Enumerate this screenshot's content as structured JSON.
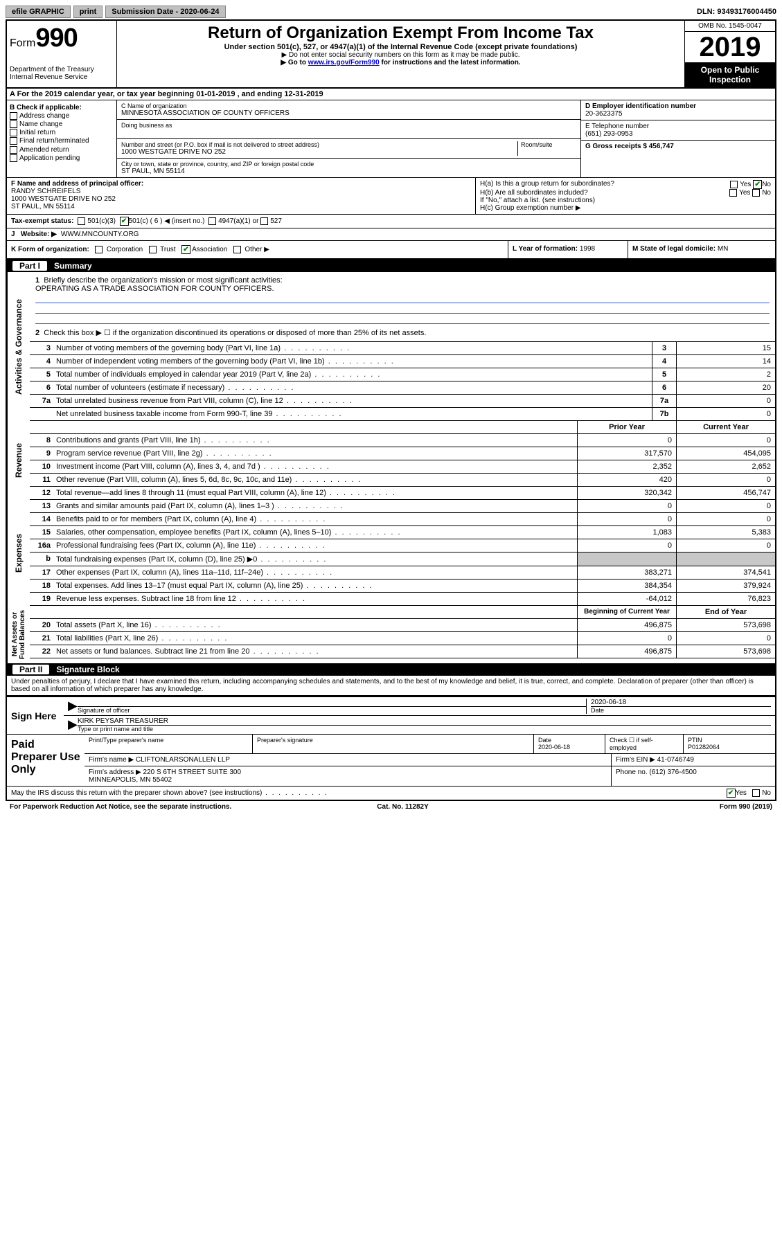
{
  "topbar": {
    "efile": "efile GRAPHIC",
    "print": "print",
    "subdate_label": "Submission Date - ",
    "subdate": "2020-06-24",
    "dln_label": "DLN: ",
    "dln": "93493176004450"
  },
  "header": {
    "form_prefix": "Form",
    "form_num": "990",
    "dept": "Department of the Treasury\nInternal Revenue Service",
    "title": "Return of Organization Exempt From Income Tax",
    "sub1": "Under section 501(c), 527, or 4947(a)(1) of the Internal Revenue Code (except private foundations)",
    "sub2": "▶ Do not enter social security numbers on this form as it may be made public.",
    "sub3_pre": "▶ Go to ",
    "sub3_link": "www.irs.gov/Form990",
    "sub3_post": " for instructions and the latest information.",
    "omb": "OMB No. 1545-0047",
    "year": "2019",
    "open": "Open to Public Inspection"
  },
  "rowA": "A For the 2019 calendar year, or tax year beginning 01-01-2019   , and ending 12-31-2019",
  "colB": {
    "title": "B Check if applicable:",
    "items": [
      "Address change",
      "Name change",
      "Initial return",
      "Final return/terminated",
      "Amended return",
      "Application pending"
    ]
  },
  "colC": {
    "name_label": "C Name of organization",
    "name": "MINNESOTA ASSOCIATION OF COUNTY OFFICERS",
    "dba_label": "Doing business as",
    "addr_label": "Number and street (or P.O. box if mail is not delivered to street address)",
    "room_label": "Room/suite",
    "addr": "1000 WESTGATE DRIVE NO 252",
    "city_label": "City or town, state or province, country, and ZIP or foreign postal code",
    "city": "ST PAUL, MN  55114"
  },
  "colD": {
    "ein_label": "D Employer identification number",
    "ein": "20-3623375",
    "phone_label": "E Telephone number",
    "phone": "(651) 293-0953",
    "gross_label": "G Gross receipts $ ",
    "gross": "456,747"
  },
  "rowF": {
    "label": "F  Name and address of principal officer:",
    "name": "RANDY SCHREIFELS",
    "addr": "1000 WESTGATE DRIVE NO 252\nST PAUL, MN  55114"
  },
  "rowH": {
    "ha": "H(a)  Is this a group return for subordinates?",
    "hb": "H(b)  Are all subordinates included?",
    "hb_note": "If \"No,\" attach a list. (see instructions)",
    "hc": "H(c)  Group exemption number ▶",
    "yes": "Yes",
    "no": "No"
  },
  "rowI": {
    "label": "Tax-exempt status:",
    "opt1": "501(c)(3)",
    "opt2": "501(c) ( 6 ) ◀ (insert no.)",
    "opt3": "4947(a)(1) or",
    "opt4": "527"
  },
  "rowJ": {
    "label": "Website: ▶",
    "val": " WWW.MNCOUNTY.ORG"
  },
  "rowK": {
    "k1": "K Form of organization:",
    "corp": "Corporation",
    "trust": "Trust",
    "assoc": "Association",
    "other": "Other ▶",
    "k2_label": "L Year of formation: ",
    "k2": "1998",
    "k3_label": "M State of legal domicile: ",
    "k3": "MN"
  },
  "part1": {
    "num": "Part I",
    "title": "Summary"
  },
  "mission": {
    "line1_num": "1",
    "line1": "Briefly describe the organization's mission or most significant activities:",
    "text": "OPERATING AS A TRADE ASSOCIATION FOR COUNTY OFFICERS.",
    "line2_num": "2",
    "line2": "Check this box ▶ ☐  if the organization discontinued its operations or disposed of more than 25% of its net assets."
  },
  "gov_lines": [
    {
      "n": "3",
      "d": "Number of voting members of the governing body (Part VI, line 1a)",
      "bn": "3",
      "v": "15"
    },
    {
      "n": "4",
      "d": "Number of independent voting members of the governing body (Part VI, line 1b)",
      "bn": "4",
      "v": "14"
    },
    {
      "n": "5",
      "d": "Total number of individuals employed in calendar year 2019 (Part V, line 2a)",
      "bn": "5",
      "v": "2"
    },
    {
      "n": "6",
      "d": "Total number of volunteers (estimate if necessary)",
      "bn": "6",
      "v": "20"
    },
    {
      "n": "7a",
      "d": "Total unrelated business revenue from Part VIII, column (C), line 12",
      "bn": "7a",
      "v": "0"
    },
    {
      "n": "",
      "d": "Net unrelated business taxable income from Form 990-T, line 39",
      "bn": "7b",
      "v": "0"
    }
  ],
  "rev_hdr": {
    "prior": "Prior Year",
    "curr": "Current Year"
  },
  "rev_lines": [
    {
      "n": "8",
      "d": "Contributions and grants (Part VIII, line 1h)",
      "p": "0",
      "c": "0"
    },
    {
      "n": "9",
      "d": "Program service revenue (Part VIII, line 2g)",
      "p": "317,570",
      "c": "454,095"
    },
    {
      "n": "10",
      "d": "Investment income (Part VIII, column (A), lines 3, 4, and 7d )",
      "p": "2,352",
      "c": "2,652"
    },
    {
      "n": "11",
      "d": "Other revenue (Part VIII, column (A), lines 5, 6d, 8c, 9c, 10c, and 11e)",
      "p": "420",
      "c": "0"
    },
    {
      "n": "12",
      "d": "Total revenue—add lines 8 through 11 (must equal Part VIII, column (A), line 12)",
      "p": "320,342",
      "c": "456,747"
    }
  ],
  "exp_lines": [
    {
      "n": "13",
      "d": "Grants and similar amounts paid (Part IX, column (A), lines 1–3 )",
      "p": "0",
      "c": "0"
    },
    {
      "n": "14",
      "d": "Benefits paid to or for members (Part IX, column (A), line 4)",
      "p": "0",
      "c": "0"
    },
    {
      "n": "15",
      "d": "Salaries, other compensation, employee benefits (Part IX, column (A), lines 5–10)",
      "p": "1,083",
      "c": "5,383"
    },
    {
      "n": "16a",
      "d": "Professional fundraising fees (Part IX, column (A), line 11e)",
      "p": "0",
      "c": "0"
    },
    {
      "n": "b",
      "d": "Total fundraising expenses (Part IX, column (D), line 25) ▶0",
      "p": "",
      "c": "",
      "grey": true
    },
    {
      "n": "17",
      "d": "Other expenses (Part IX, column (A), lines 11a–11d, 11f–24e)",
      "p": "383,271",
      "c": "374,541"
    },
    {
      "n": "18",
      "d": "Total expenses. Add lines 13–17 (must equal Part IX, column (A), line 25)",
      "p": "384,354",
      "c": "379,924"
    },
    {
      "n": "19",
      "d": "Revenue less expenses. Subtract line 18 from line 12",
      "p": "-64,012",
      "c": "76,823"
    }
  ],
  "net_hdr": {
    "prior": "Beginning of Current Year",
    "curr": "End of Year"
  },
  "net_lines": [
    {
      "n": "20",
      "d": "Total assets (Part X, line 16)",
      "p": "496,875",
      "c": "573,698"
    },
    {
      "n": "21",
      "d": "Total liabilities (Part X, line 26)",
      "p": "0",
      "c": "0"
    },
    {
      "n": "22",
      "d": "Net assets or fund balances. Subtract line 21 from line 20",
      "p": "496,875",
      "c": "573,698"
    }
  ],
  "vtabs": {
    "gov": "Activities & Governance",
    "rev": "Revenue",
    "exp": "Expenses",
    "net": "Net Assets or\nFund Balances"
  },
  "part2": {
    "num": "Part II",
    "title": "Signature Block"
  },
  "perjury": "Under penalties of perjury, I declare that I have examined this return, including accompanying schedules and statements, and to the best of my knowledge and belief, it is true, correct, and complete. Declaration of preparer (other than officer) is based on all information of which preparer has any knowledge.",
  "sign": {
    "label": "Sign Here",
    "sig_label": "Signature of officer",
    "date": "2020-06-18",
    "date_label": "Date",
    "name": "KIRK PEYSAR TREASURER",
    "name_label": "Type or print name and title"
  },
  "paid": {
    "label": "Paid Preparer Use Only",
    "h1": "Print/Type preparer's name",
    "h2": "Preparer's signature",
    "h3": "Date",
    "h3v": "2020-06-18",
    "h4": "Check ☐ if self-employed",
    "h5": "PTIN",
    "h5v": "P01282064",
    "firm_label": "Firm's name    ▶ ",
    "firm": "CLIFTONLARSONALLEN LLP",
    "ein_label": "Firm's EIN ▶ ",
    "ein": "41-0746749",
    "addr_label": "Firm's address ▶ ",
    "addr": "220 S 6TH STREET SUITE 300\nMINNEAPOLIS, MN  55402",
    "phone_label": "Phone no. ",
    "phone": "(612) 376-4500"
  },
  "discuss": {
    "q": "May the IRS discuss this return with the preparer shown above? (see instructions)",
    "yes": "Yes",
    "no": "No"
  },
  "footer": {
    "l": "For Paperwork Reduction Act Notice, see the separate instructions.",
    "m": "Cat. No. 11282Y",
    "r": "Form 990 (2019)"
  }
}
